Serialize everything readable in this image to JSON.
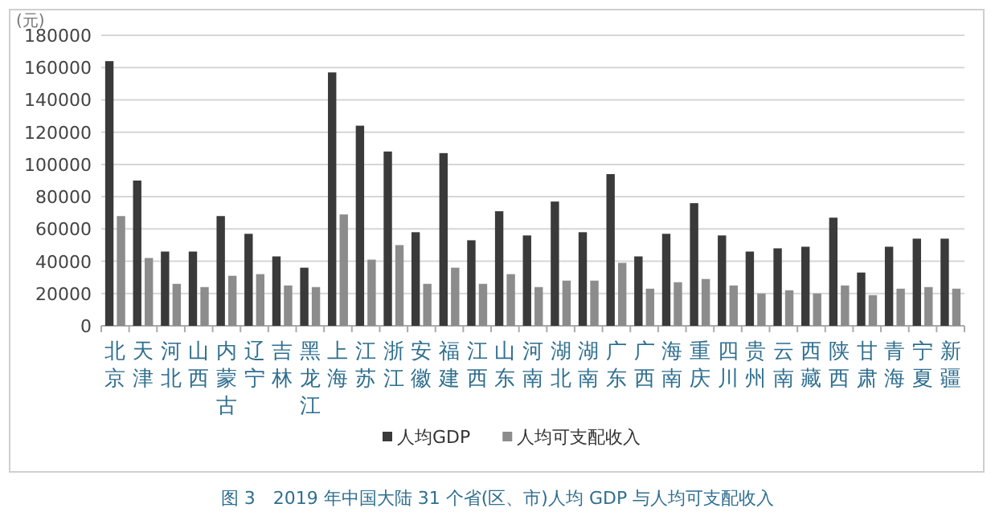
{
  "chart_data": {
    "type": "bar",
    "title": "图 3　2019 年中国大陆 31 个省(区、市)人均 GDP 与人均可支配收入",
    "ylabel": "(元)",
    "categories": [
      "北京",
      "天津",
      "河北",
      "山西",
      "内蒙古",
      "辽宁",
      "吉林",
      "黑龙江",
      "上海",
      "江苏",
      "浙江",
      "安徽",
      "福建",
      "江西",
      "山东",
      "河南",
      "湖北",
      "湖南",
      "广东",
      "广西",
      "海南",
      "重庆",
      "四川",
      "贵州",
      "云南",
      "西藏",
      "陕西",
      "甘肃",
      "青海",
      "宁夏",
      "新疆"
    ],
    "series": [
      {
        "name": "人均GDP",
        "color": "#3a3a3a",
        "values": [
          164000,
          90000,
          46000,
          46000,
          68000,
          57000,
          43000,
          36000,
          157000,
          124000,
          108000,
          58000,
          107000,
          53000,
          71000,
          56000,
          77000,
          58000,
          94000,
          43000,
          57000,
          76000,
          56000,
          46000,
          48000,
          49000,
          67000,
          33000,
          49000,
          54000,
          54000
        ]
      },
      {
        "name": "人均可支配收入",
        "color": "#8c8c8c",
        "values": [
          68000,
          42000,
          26000,
          24000,
          31000,
          32000,
          25000,
          24000,
          69000,
          41000,
          50000,
          26000,
          36000,
          26000,
          32000,
          24000,
          28000,
          28000,
          39000,
          23000,
          27000,
          29000,
          25000,
          20000,
          22000,
          20000,
          25000,
          19000,
          23000,
          24000,
          23000
        ]
      }
    ],
    "ylim": [
      0,
      180000
    ],
    "yticks": [
      0,
      20000,
      40000,
      60000,
      80000,
      100000,
      120000,
      140000,
      160000,
      180000
    ],
    "grid": "y",
    "legend": "bottom"
  }
}
